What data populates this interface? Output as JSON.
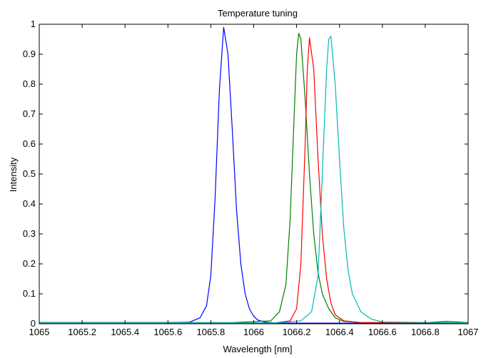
{
  "chart_data": {
    "type": "line",
    "title": "Temperature tuning",
    "xlabel": "Wavelength [nm]",
    "ylabel": "Intensity",
    "xlim": [
      1065,
      1067
    ],
    "ylim": [
      0,
      1
    ],
    "xticks": [
      1065,
      1065.2,
      1065.4,
      1065.6,
      1065.8,
      1066,
      1066.2,
      1066.4,
      1066.6,
      1066.8,
      1067
    ],
    "xtick_labels": [
      "1065",
      "1065.2",
      "1065.4",
      "1065.6",
      "1065.8",
      "1066",
      "1066.2",
      "1066.4",
      "1066.6",
      "1066.8",
      "1067"
    ],
    "yticks": [
      0,
      0.1,
      0.2,
      0.3,
      0.4,
      0.5,
      0.6,
      0.7,
      0.8,
      0.9,
      1
    ],
    "ytick_labels": [
      "0",
      "0.1",
      "0.2",
      "0.3",
      "0.4",
      "0.5",
      "0.6",
      "0.7",
      "0.8",
      "0.9",
      "1"
    ],
    "grid": false,
    "legend": "none",
    "series": [
      {
        "color": "#0000ff",
        "x": [
          1065,
          1065.6,
          1065.7,
          1065.75,
          1065.78,
          1065.8,
          1065.82,
          1065.84,
          1065.86,
          1065.88,
          1065.9,
          1065.92,
          1065.94,
          1065.96,
          1065.98,
          1066,
          1066.02,
          1066.05,
          1066.1,
          1066.2,
          1067
        ],
        "y": [
          0.004,
          0.004,
          0.005,
          0.02,
          0.06,
          0.16,
          0.42,
          0.78,
          0.99,
          0.9,
          0.65,
          0.38,
          0.2,
          0.1,
          0.05,
          0.025,
          0.012,
          0.006,
          0.003,
          0.002,
          0.002
        ]
      },
      {
        "color": "#008000",
        "x": [
          1065,
          1065.9,
          1066.08,
          1066.12,
          1066.15,
          1066.17,
          1066.19,
          1066.2,
          1066.21,
          1066.22,
          1066.24,
          1066.26,
          1066.28,
          1066.3,
          1066.32,
          1066.35,
          1066.38,
          1066.42,
          1066.5,
          1066.8,
          1066.9,
          1067
        ],
        "y": [
          0.004,
          0.004,
          0.01,
          0.04,
          0.13,
          0.35,
          0.72,
          0.9,
          0.97,
          0.95,
          0.75,
          0.5,
          0.3,
          0.17,
          0.1,
          0.05,
          0.02,
          0.008,
          0.004,
          0.004,
          0.008,
          0.004
        ]
      },
      {
        "color": "#ff0000",
        "x": [
          1065,
          1066.1,
          1066.17,
          1066.2,
          1066.22,
          1066.24,
          1066.25,
          1066.26,
          1066.28,
          1066.3,
          1066.32,
          1066.34,
          1066.36,
          1066.38,
          1066.42,
          1066.5,
          1067
        ],
        "y": [
          0.003,
          0.003,
          0.01,
          0.05,
          0.2,
          0.6,
          0.85,
          0.955,
          0.85,
          0.55,
          0.3,
          0.15,
          0.07,
          0.03,
          0.01,
          0.004,
          0.003
        ]
      },
      {
        "color": "#00b8b8",
        "x": [
          1065,
          1066.1,
          1066.22,
          1066.27,
          1066.3,
          1066.32,
          1066.34,
          1066.35,
          1066.36,
          1066.38,
          1066.4,
          1066.42,
          1066.44,
          1066.46,
          1066.5,
          1066.55,
          1066.6,
          1067
        ],
        "y": [
          0.003,
          0.003,
          0.01,
          0.04,
          0.16,
          0.5,
          0.85,
          0.95,
          0.96,
          0.8,
          0.55,
          0.32,
          0.18,
          0.1,
          0.04,
          0.015,
          0.006,
          0.003
        ]
      }
    ]
  }
}
